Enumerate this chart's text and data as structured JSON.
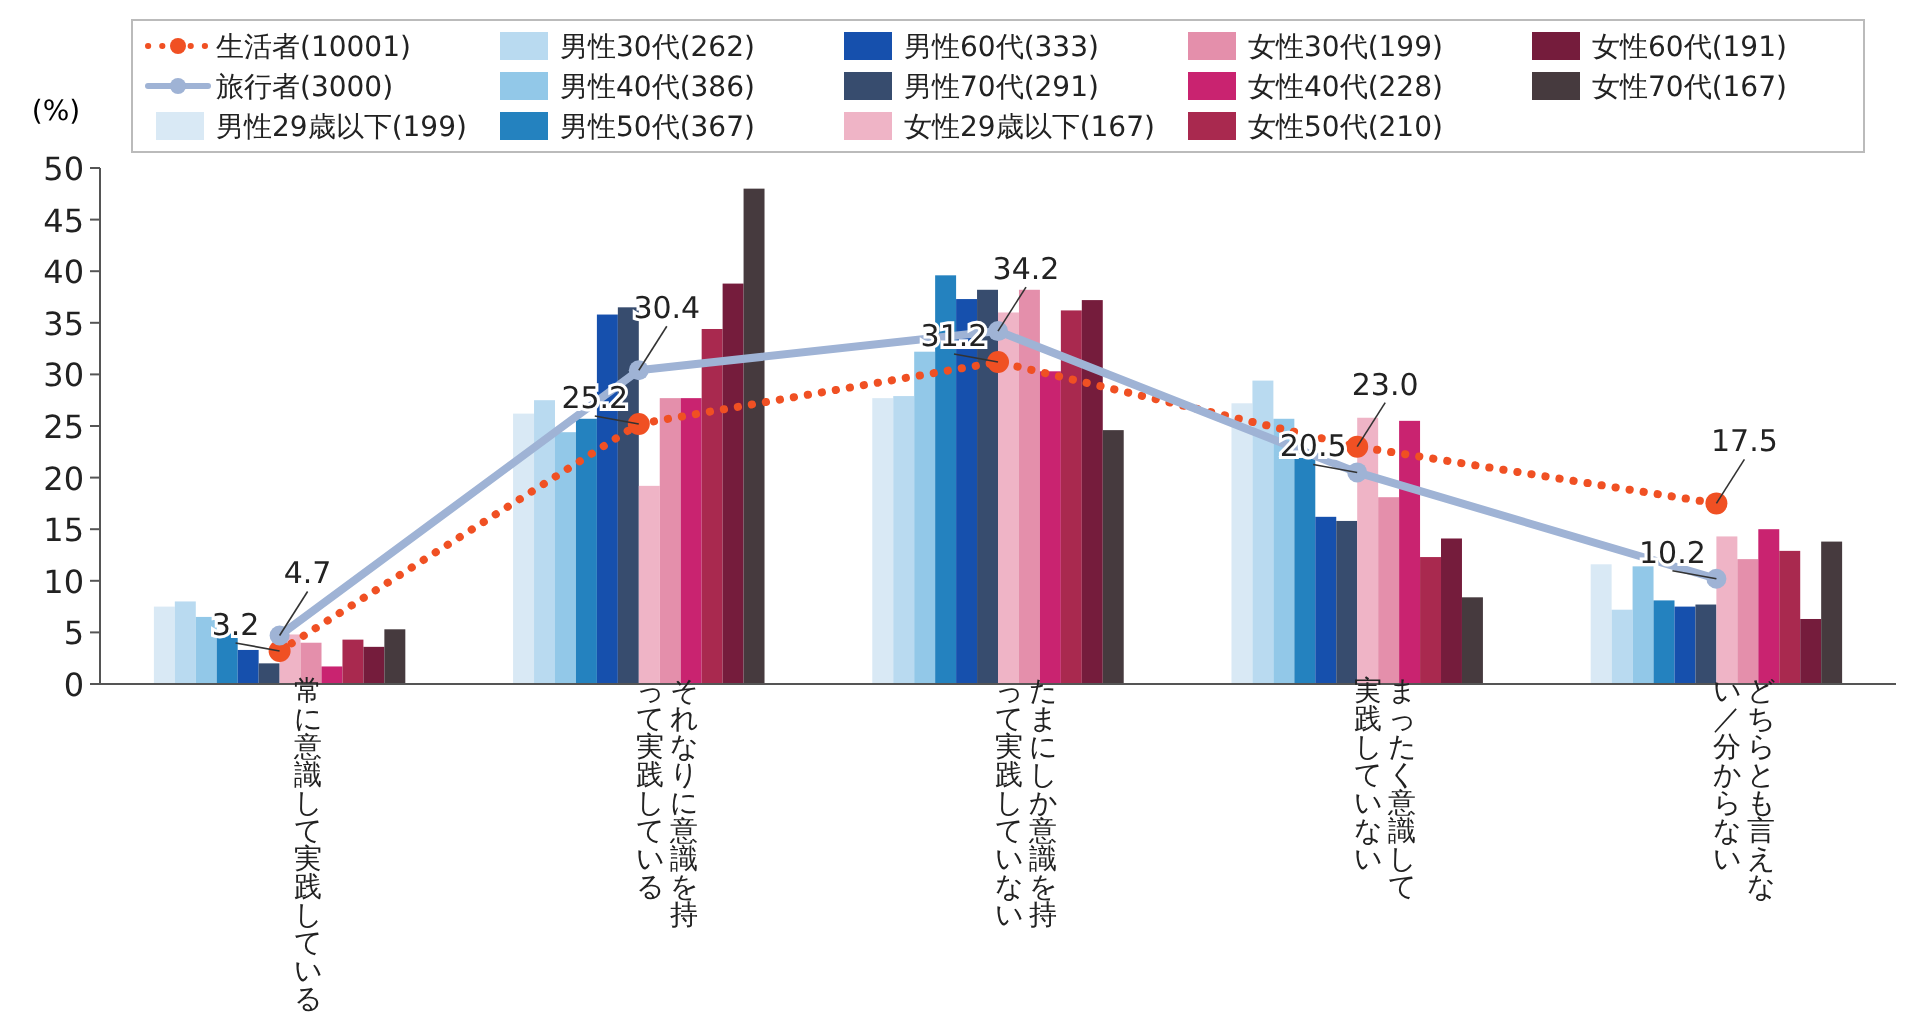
{
  "chart_data": {
    "type": "bar",
    "ylabel": "(%)",
    "categories": [
      "常に意識して実践している",
      "それなりに意識を持って実践している",
      "たまにしか意識を持って実践していない",
      "まったく意識して実践していない",
      "どちらとも言えない／分からない"
    ],
    "ylim": [
      0,
      50
    ],
    "yticks": [
      0,
      5,
      10,
      15,
      20,
      25,
      30,
      35,
      40,
      45,
      50
    ],
    "grid": false,
    "legend": "top",
    "series": [
      {
        "name": "生活者(10001)",
        "type": "line",
        "color": "#f05023",
        "marker": "circle",
        "line_style": "dotted",
        "value_labels": [
          "3.2",
          "25.2",
          "31.2",
          "23.0",
          "17.5"
        ],
        "values": [
          3.2,
          25.2,
          31.2,
          23.0,
          17.5
        ]
      },
      {
        "name": "旅行者(3000)",
        "type": "line",
        "color": "#9fb3d5",
        "marker": "circle",
        "line_style": "solid",
        "value_labels": [
          "4.7",
          "30.4",
          "34.2",
          "20.5",
          "10.2"
        ],
        "values": [
          4.7,
          30.4,
          34.2,
          20.5,
          10.2
        ]
      },
      {
        "name": "男性29歳以下(199)",
        "color": "#d9e9f5",
        "values": [
          7.5,
          26.2,
          27.7,
          27.2,
          11.6
        ]
      },
      {
        "name": "男性30代(262)",
        "color": "#b9daf0",
        "values": [
          8.0,
          27.5,
          27.9,
          29.4,
          7.2
        ]
      },
      {
        "name": "男性40代(386)",
        "color": "#92c8e8",
        "values": [
          6.5,
          24.4,
          32.2,
          25.7,
          11.4
        ]
      },
      {
        "name": "男性50代(367)",
        "color": "#2482bf",
        "values": [
          4.9,
          25.7,
          39.6,
          21.9,
          8.1
        ]
      },
      {
        "name": "男性60代(333)",
        "color": "#1650ad",
        "values": [
          3.3,
          35.8,
          37.3,
          16.2,
          7.5
        ]
      },
      {
        "name": "男性70代(291)",
        "color": "#374c6e",
        "values": [
          2.0,
          36.5,
          38.2,
          15.8,
          7.7
        ]
      },
      {
        "name": "女性29歳以下(167)",
        "color": "#efb4c6",
        "values": [
          4.8,
          19.2,
          36.0,
          25.8,
          14.3
        ]
      },
      {
        "name": "女性30代(199)",
        "color": "#e48fab",
        "values": [
          4.0,
          27.7,
          38.2,
          18.1,
          12.1
        ]
      },
      {
        "name": "女性40代(228)",
        "color": "#c92370",
        "values": [
          1.7,
          27.7,
          30.3,
          25.5,
          15.0
        ]
      },
      {
        "name": "女性50代(210)",
        "color": "#a9294f",
        "values": [
          4.3,
          34.4,
          36.2,
          12.3,
          12.9
        ]
      },
      {
        "name": "女性60代(191)",
        "color": "#751c3c",
        "values": [
          3.6,
          38.8,
          37.2,
          14.1,
          6.3
        ]
      },
      {
        "name": "女性70代(167)",
        "color": "#463a3e",
        "values": [
          5.3,
          48.0,
          24.6,
          8.4,
          13.8
        ]
      }
    ]
  }
}
